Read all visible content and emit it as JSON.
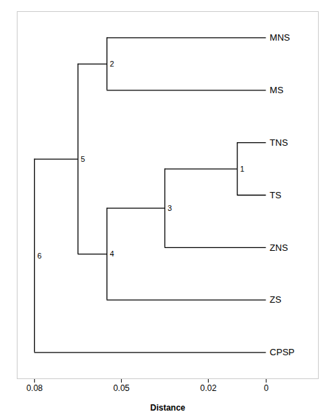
{
  "chart_data": {
    "type": "dendrogram",
    "xlabel": "Distance",
    "taxa": [
      "MNS",
      "MS",
      "TNS",
      "TS",
      "ZNS",
      "ZS",
      "CPSP"
    ],
    "nodes": [
      {
        "label": "1",
        "distance": 0.01,
        "children": [
          "TNS",
          "TS"
        ]
      },
      {
        "label": "2",
        "distance": 0.055,
        "children": [
          "MNS",
          "MS"
        ]
      },
      {
        "label": "3",
        "distance": 0.035,
        "children": [
          "1",
          "ZNS"
        ]
      },
      {
        "label": "4",
        "distance": 0.055,
        "children": [
          "3",
          "ZS"
        ]
      },
      {
        "label": "5",
        "distance": 0.065,
        "children": [
          "2",
          "4"
        ]
      },
      {
        "label": "6",
        "distance": 0.08,
        "children": [
          "5",
          "CPSP"
        ]
      }
    ],
    "xlim": [
      0.086,
      -0.018
    ],
    "xticks": [
      0.08,
      0.05,
      0.02,
      0.0
    ],
    "grid": false,
    "tick_labels": "x"
  }
}
